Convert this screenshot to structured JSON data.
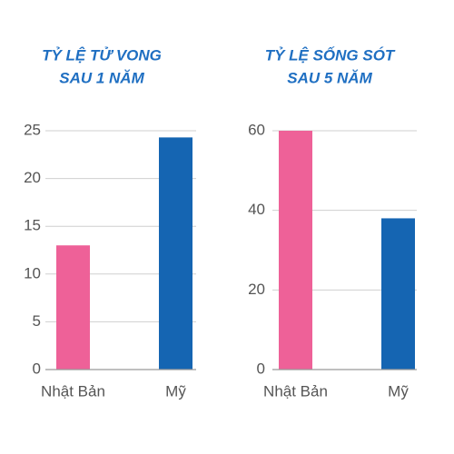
{
  "chart_data": [
    {
      "type": "bar",
      "title": [
        "TỶ LỆ TỬ VONG",
        "SAU 1 NĂM"
      ],
      "categories": [
        "Nhật Bản",
        "Mỹ"
      ],
      "values": [
        13,
        24.3
      ],
      "colors": [
        "#ee6198",
        "#1565b2"
      ],
      "ylim": [
        0,
        25
      ],
      "yticks": [
        0,
        5,
        10,
        15,
        20,
        25
      ],
      "grid": true
    },
    {
      "type": "bar",
      "title": [
        "TỶ LỆ SỐNG SÓT",
        "SAU 5 NĂM"
      ],
      "categories": [
        "Nhật Bản",
        "Mỹ"
      ],
      "values": [
        60,
        38
      ],
      "colors": [
        "#ee6198",
        "#1565b2"
      ],
      "ylim": [
        0,
        60
      ],
      "yticks": [
        0,
        20,
        40,
        60
      ],
      "grid": true
    }
  ]
}
